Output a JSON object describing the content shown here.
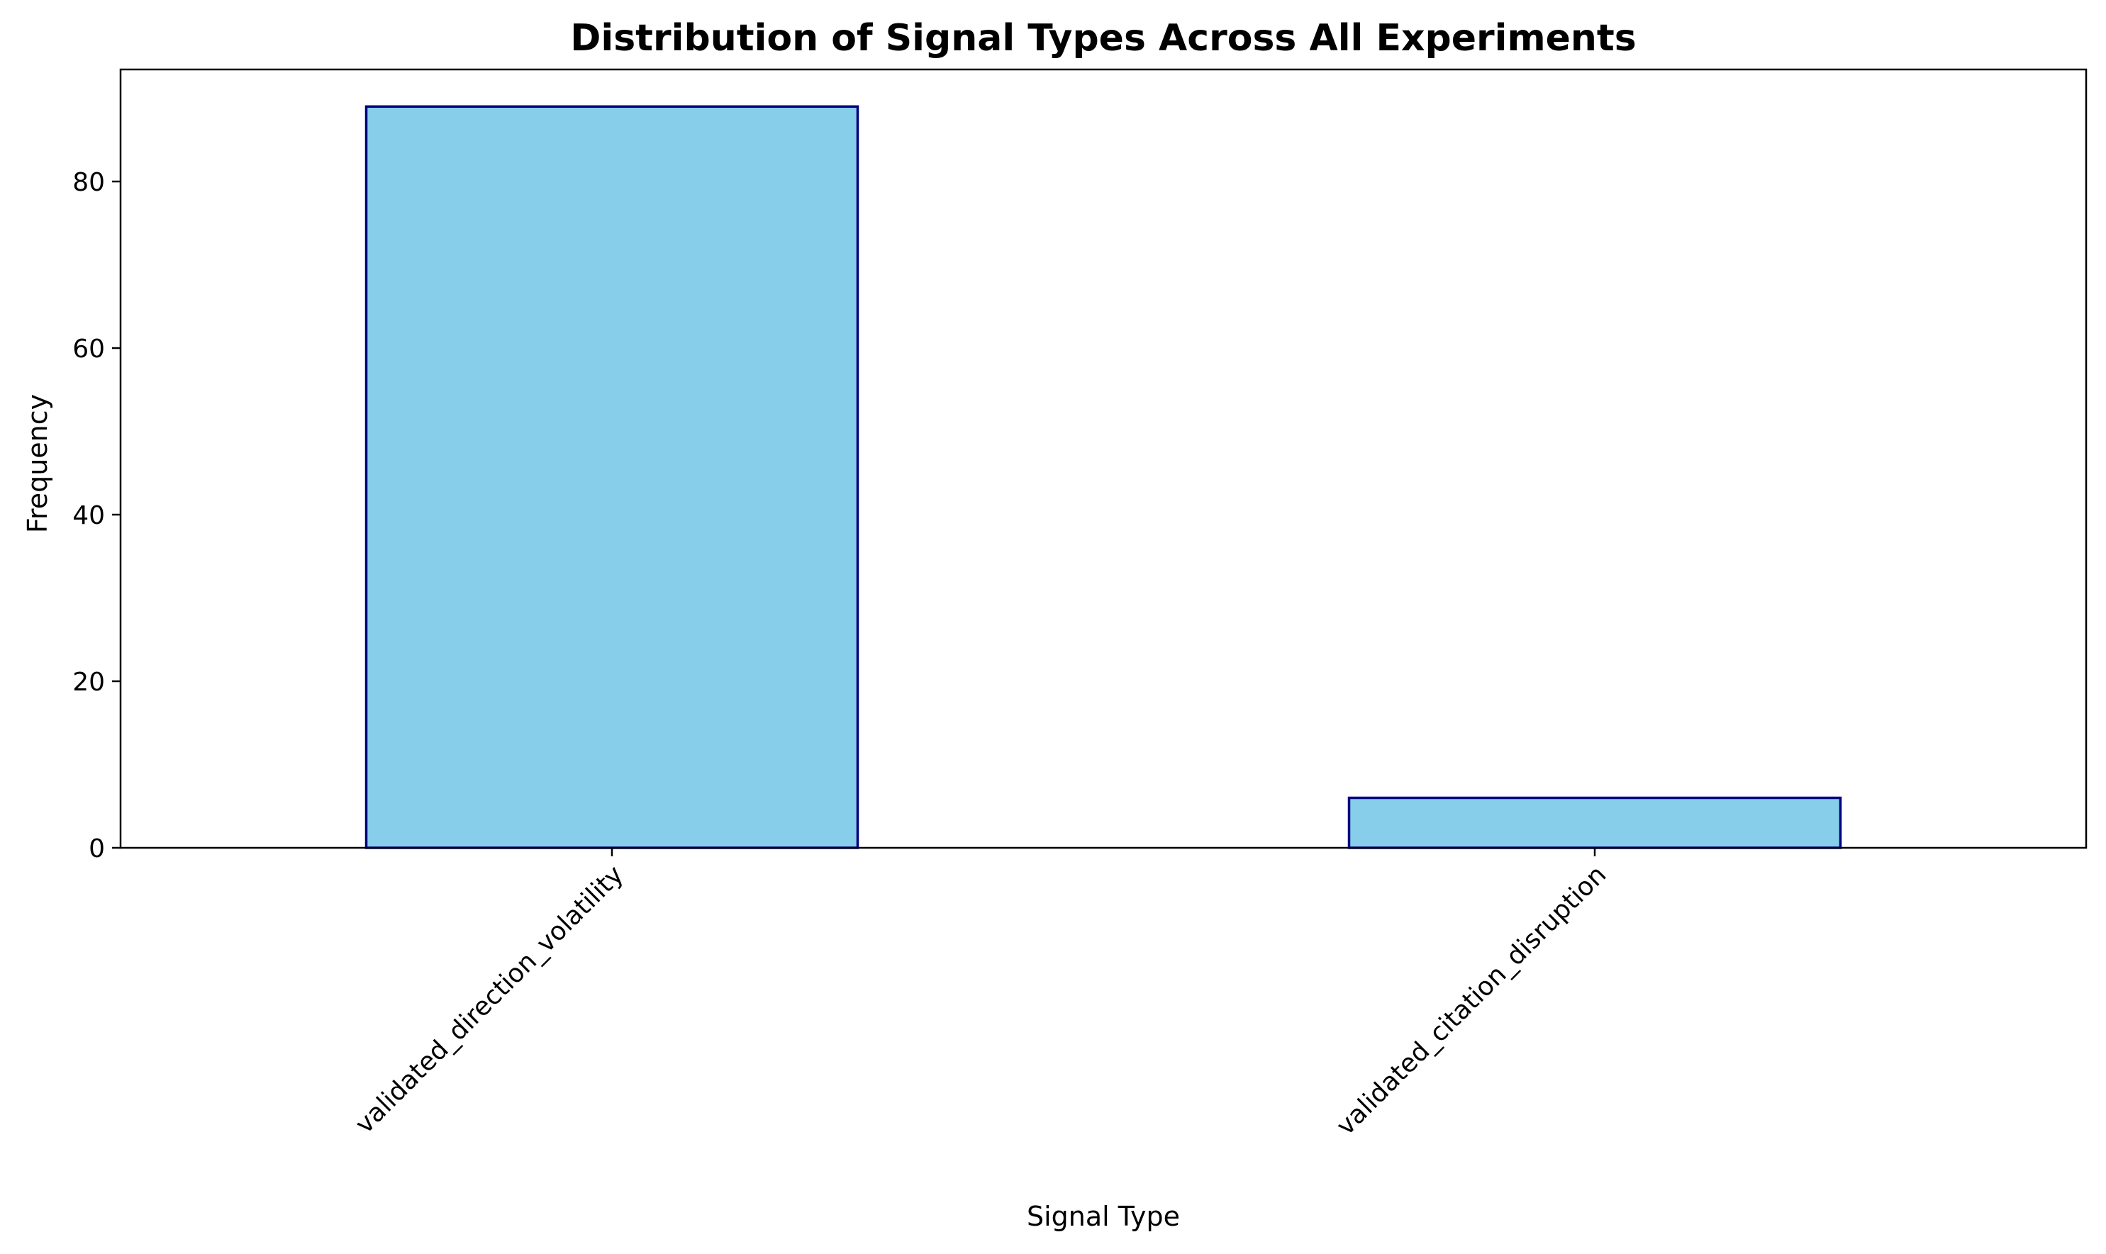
{
  "chart_data": {
    "type": "bar",
    "title": "Distribution of Signal Types Across All Experiments",
    "xlabel": "Signal Type",
    "ylabel": "Frequency",
    "categories": [
      "validated_direction_volatility",
      "validated_citation_disruption"
    ],
    "values": [
      89,
      6
    ],
    "ylim": [
      0,
      93.45
    ],
    "yticks": [
      0,
      20,
      40,
      60,
      80
    ],
    "grid": false,
    "legend": "none",
    "bar_color": "#87CEEB",
    "bar_edge_color": "#000080",
    "xtick_rotation": 45
  }
}
